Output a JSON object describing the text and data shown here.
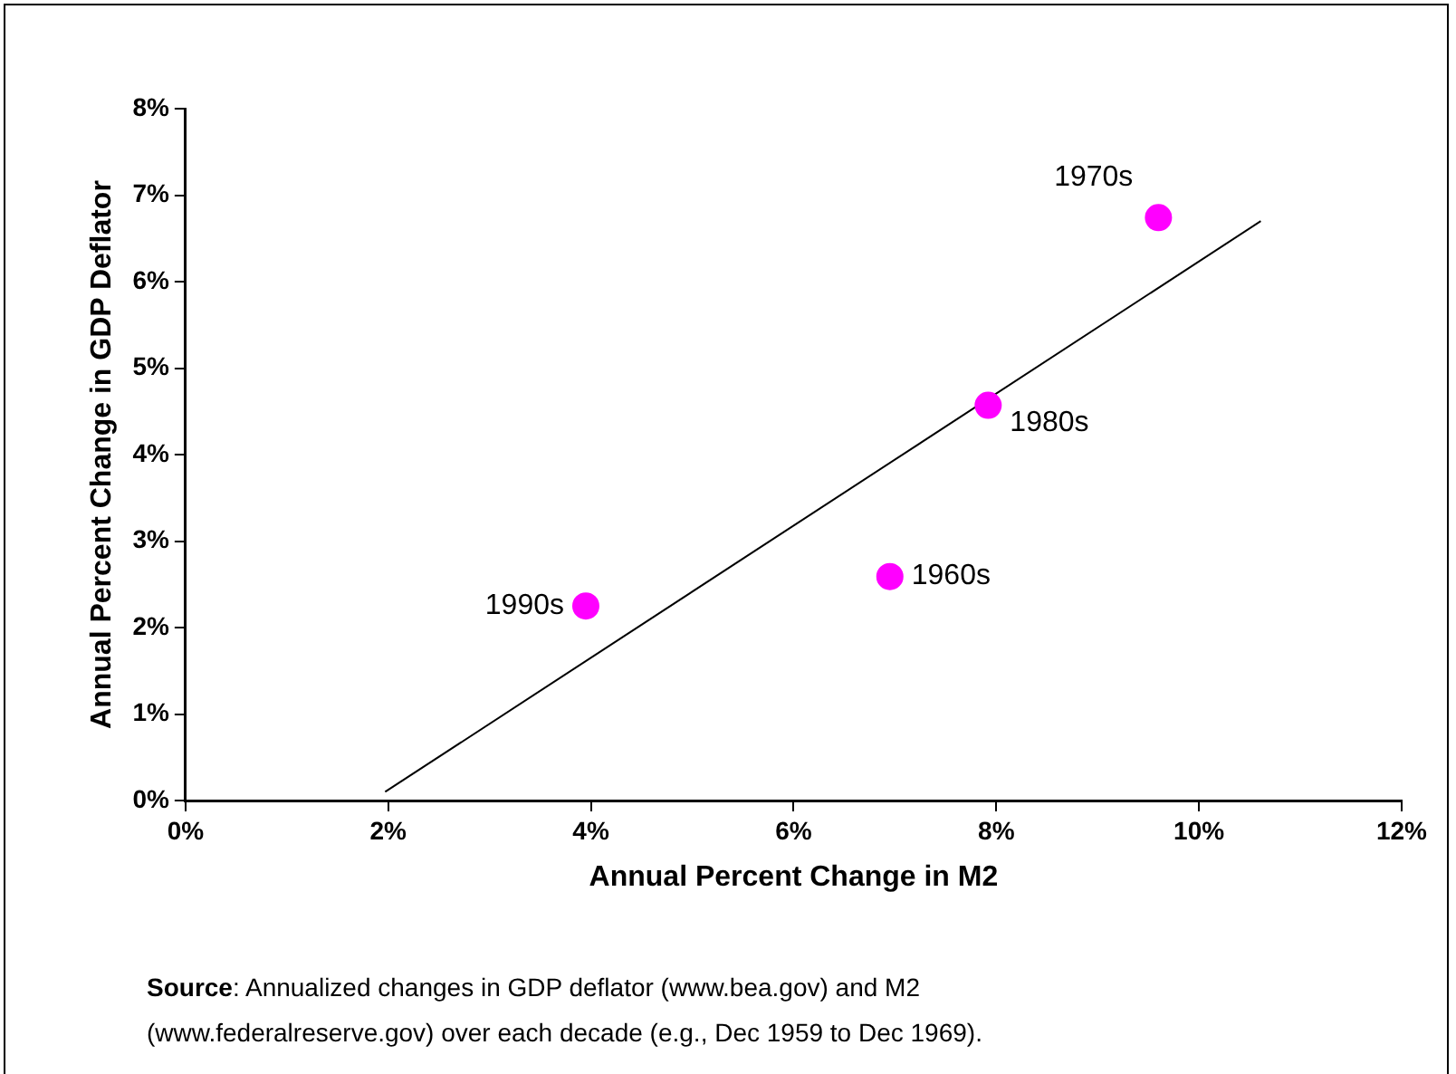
{
  "chart_data": {
    "type": "scatter",
    "xlabel": "Annual Percent Change in M2",
    "ylabel": "Annual Percent Change in GDP Deflator",
    "series": [
      {
        "marker": "circle",
        "color": "#ff00ff",
        "x": [
          3.95,
          9.6,
          7.92,
          6.95
        ],
        "values": [
          2.25,
          6.74,
          4.57,
          2.59
        ]
      },
      {
        "type": "line",
        "marker": "none",
        "color": "#000000",
        "x": [
          1.97,
          10.61
        ],
        "values": [
          0.1,
          6.7
        ]
      }
    ],
    "grid": false,
    "legend": false,
    "xlim": [
      0,
      12
    ],
    "xticks": [
      {
        "value": 0,
        "label": "0%"
      },
      {
        "value": 2,
        "label": "2%"
      },
      {
        "value": 4,
        "label": "4%"
      },
      {
        "value": 6,
        "label": "6%"
      },
      {
        "value": 8,
        "label": "8%"
      },
      {
        "value": 10,
        "label": "10%"
      },
      {
        "value": 12,
        "label": "12%"
      }
    ],
    "ylim": [
      0,
      8
    ],
    "yticks": [
      {
        "value": 0,
        "label": "0%"
      },
      {
        "value": 1,
        "label": "1%"
      },
      {
        "value": 2,
        "label": "2%"
      },
      {
        "value": 3,
        "label": "3%"
      },
      {
        "value": 4,
        "label": "4%"
      },
      {
        "value": 5,
        "label": "5%"
      },
      {
        "value": 6,
        "label": "6%"
      },
      {
        "value": 7,
        "label": "7%"
      },
      {
        "value": 8,
        "label": "8%"
      }
    ],
    "annotations": [
      {
        "text": "1990s",
        "x": 3.95,
        "y": 2.25
      },
      {
        "text": "1970s",
        "x": 9.6,
        "y": 6.74
      },
      {
        "text": "1980s",
        "x": 7.92,
        "y": 4.57
      },
      {
        "text": "1960s",
        "x": 6.95,
        "y": 2.59
      },
      "Source: Annualized changes in GDP deflator (www.bea.gov) and M2 (www.federalreserve.gov) over each decade (e.g., Dec 1959 to Dec 1969)."
    ]
  }
}
